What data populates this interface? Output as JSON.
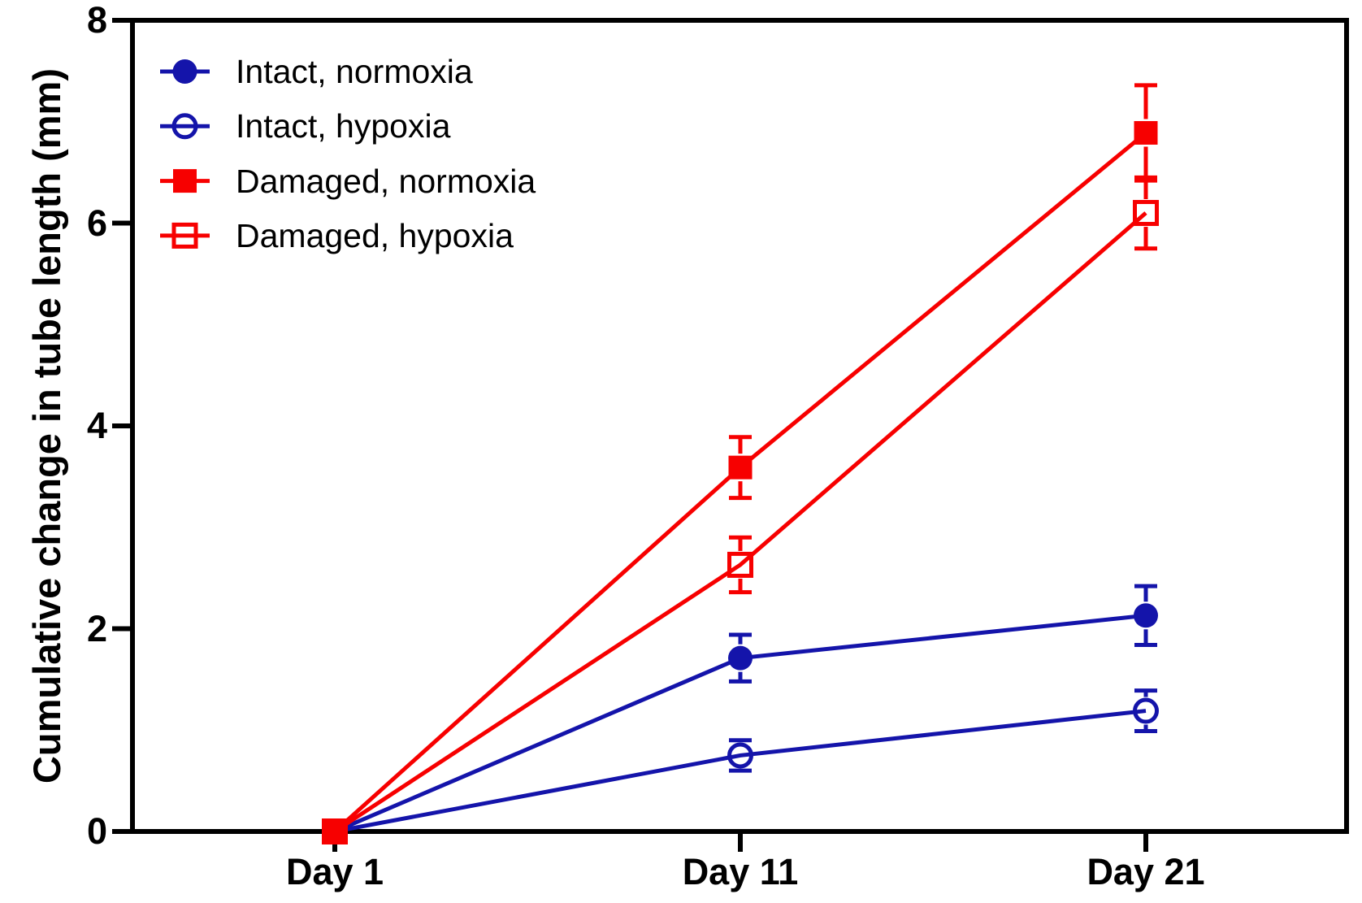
{
  "chart_data": {
    "type": "line",
    "title": "",
    "xlabel": "",
    "ylabel": "Cumulative change in tube length (mm)",
    "x_categories": [
      "Day 1",
      "Day 11",
      "Day 21"
    ],
    "x_values": [
      1,
      11,
      21
    ],
    "ylim": [
      0,
      8
    ],
    "yticks": [
      0,
      2,
      4,
      6,
      8
    ],
    "grid": false,
    "legend_position": "top-left-inside",
    "axis_color": "#000000",
    "series": [
      {
        "name": "Intact, normoxia",
        "color": "#1414AA",
        "marker": "circle-filled",
        "values": [
          0,
          1.71,
          2.13
        ],
        "errors": [
          0,
          0.23,
          0.29
        ]
      },
      {
        "name": "Intact, hypoxia",
        "color": "#1414AA",
        "marker": "circle-open",
        "values": [
          0,
          0.75,
          1.19
        ],
        "errors": [
          0,
          0.15,
          0.2
        ]
      },
      {
        "name": "Damaged, normoxia",
        "color": "#F70000",
        "marker": "square-filled",
        "values": [
          0,
          3.59,
          6.89
        ],
        "errors": [
          0,
          0.3,
          0.47
        ]
      },
      {
        "name": "Damaged, hypoxia",
        "color": "#F70000",
        "marker": "square-open",
        "values": [
          0,
          2.63,
          6.1
        ],
        "errors": [
          0,
          0.27,
          0.35
        ]
      }
    ]
  }
}
